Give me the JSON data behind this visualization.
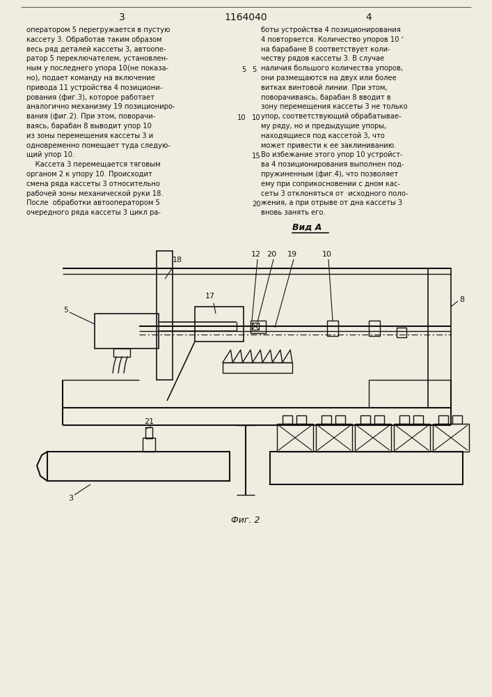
{
  "page_width": 7.07,
  "page_height": 10.0,
  "bg_color": "#f0ece0",
  "text_color": "#111111",
  "line_color": "#111111",
  "header_left_num": "3",
  "header_center": "1164040",
  "header_right_num": "4",
  "fig_label": "Фиг. 2",
  "view_label": "Вид A",
  "col1_lines": [
    "оператором 5 перегружается в пустую",
    "кассету 3. Обработав таким образом",
    "весь ряд деталей кассеты 3, автоопе-",
    "ратор 5 переключателем, установлен-",
    "ным у последнего упора 10(не показа-",
    "но), подает команду на включение",
    "привода 11 устройства 4 позициони-",
    "рования (фиг.3), которое работает",
    "аналогично механизму 19 позициониро-",
    "вания (фиг.2). При этом, поворачи-",
    "ваясь, барабан 8 выводит упор 10",
    "из зоны перемещения кассеты 3 и",
    "одновременно помещает туда следую-",
    "щий упор 10.",
    "    Кассета 3 перемещается тяговым",
    "органом 2 к упору 10. Происходит",
    "смена ряда кассеты 3 относительно",
    "рабочей зоны механической руки 18.",
    "После  обработки автооператором 5",
    "очередного ряда кассеты 3 цикл ра-"
  ],
  "col2_lines": [
    "боты устройства 4 позиционирования",
    "4 повторяется. Количество упоров 10 ‘",
    "на барабане 8 соответствует коли-",
    "честву рядов кассеты 3. В случае",
    "наличия большого количества упоров,",
    "они размещаются на двух или более",
    "витках винтовой линии. При этом,",
    "поворачиваясь, барабан 8 вводит в",
    "зону перемещения кассеты 3 не только",
    "упор, соответствующий обрабатывае-",
    "му ряду, но и предыдущие упоры,",
    "находящиеся под кассетой 3, что",
    "может привести к ее заклиниванию.",
    "Во избежание этого упор 10 устройст-",
    "ва 4 позиционирования выполнен под-",
    "пружиненным (фиг.4), что позволяет",
    "ему при соприкосновении с дном кас-",
    "сеты 3 отклоняться от ·исходного поло-",
    "жения, а при отрыве от дна кассеты 3",
    "вновь занять его."
  ]
}
